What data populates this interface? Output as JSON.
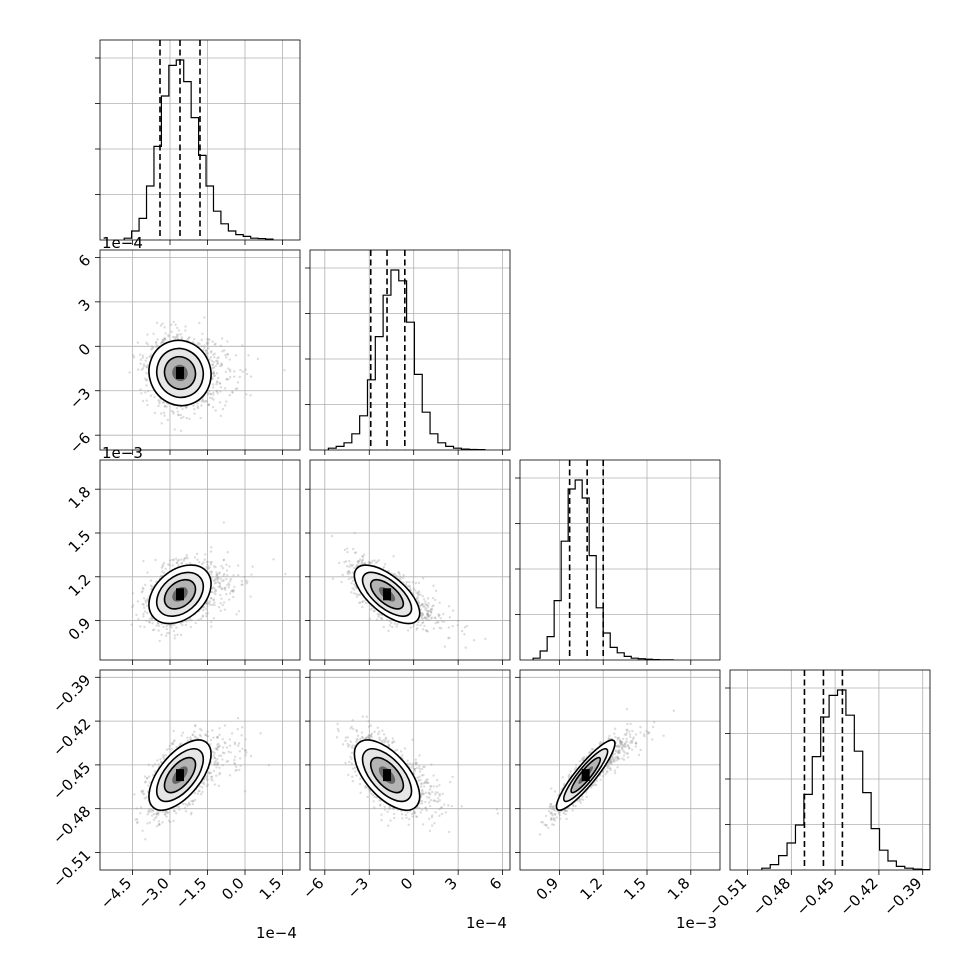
{
  "chart_data": {
    "type": "corner",
    "parameters": [
      {
        "offset_label": "1e−4",
        "mean": -2.6,
        "std": 0.62,
        "lim": [
          -5.8,
          2.2
        ],
        "ticks": [
          -4.5,
          -3.0,
          -1.5,
          0.0,
          1.5
        ],
        "tick_labels": [
          "−4.5",
          "−3.0",
          "−1.5",
          "0.0",
          "1.5"
        ],
        "quantiles": [
          -3.4,
          -2.6,
          -1.8
        ],
        "hist_counts": [
          0.01,
          0.05,
          0.12,
          0.3,
          0.52,
          0.8,
          0.97,
          1.0,
          0.88,
          0.68,
          0.47,
          0.3,
          0.16,
          0.09,
          0.05,
          0.03,
          0.02,
          0.01,
          0.008,
          0.005
        ]
      },
      {
        "offset_label": "1e−4",
        "mean": -1.8,
        "std": 1.1,
        "lim": [
          -7.0,
          6.5
        ],
        "ticks": [
          -6,
          -3,
          0,
          3,
          6
        ],
        "tick_labels": [
          "−6",
          "−3",
          "0",
          "3",
          "6"
        ],
        "quantiles": [
          -2.9,
          -1.8,
          -0.6
        ],
        "hist_counts": [
          0.01,
          0.02,
          0.04,
          0.09,
          0.19,
          0.39,
          0.63,
          0.86,
          1.0,
          0.94,
          0.71,
          0.42,
          0.21,
          0.09,
          0.04,
          0.02,
          0.01,
          0.005,
          0.003,
          0.002
        ]
      },
      {
        "offset_label": "1e−3",
        "mean": 1.08,
        "std": 0.1,
        "lim": [
          0.63,
          2.0
        ],
        "ticks": [
          0.9,
          1.2,
          1.5,
          1.8
        ],
        "tick_labels": [
          "0.9",
          "1.2",
          "1.5",
          "1.8"
        ],
        "quantiles": [
          0.97,
          1.09,
          1.2
        ],
        "hist_counts": [
          0.01,
          0.05,
          0.13,
          0.33,
          0.66,
          0.95,
          1.0,
          0.9,
          0.58,
          0.29,
          0.15,
          0.07,
          0.04,
          0.02,
          0.01,
          0.007,
          0.004,
          0.002,
          0.001,
          0.001
        ]
      },
      {
        "offset_label": "",
        "mean": -0.457,
        "std": 0.012,
        "lim": [
          -0.522,
          -0.385
        ],
        "ticks": [
          -0.51,
          -0.48,
          -0.45,
          -0.42,
          -0.39
        ],
        "tick_labels": [
          "−0.51",
          "−0.48",
          "−0.45",
          "−0.42",
          "−0.39"
        ],
        "quantiles": [
          -0.471,
          -0.458,
          -0.445
        ],
        "hist_counts": [
          0.01,
          0.03,
          0.08,
          0.15,
          0.25,
          0.42,
          0.63,
          0.85,
          0.97,
          1.0,
          0.86,
          0.66,
          0.43,
          0.23,
          0.11,
          0.05,
          0.02,
          0.01,
          0.005,
          0.002
        ]
      }
    ],
    "correlations": [
      [
        1.0,
        -0.05,
        0.35,
        0.6
      ],
      [
        -0.05,
        1.0,
        -0.65,
        -0.6
      ],
      [
        0.35,
        -0.65,
        1.0,
        0.9
      ],
      [
        0.6,
        -0.6,
        0.9,
        1.0
      ]
    ],
    "contour_levels_sigma": [
      0.5,
      1.0,
      1.5,
      2.0
    ],
    "grid": true
  }
}
